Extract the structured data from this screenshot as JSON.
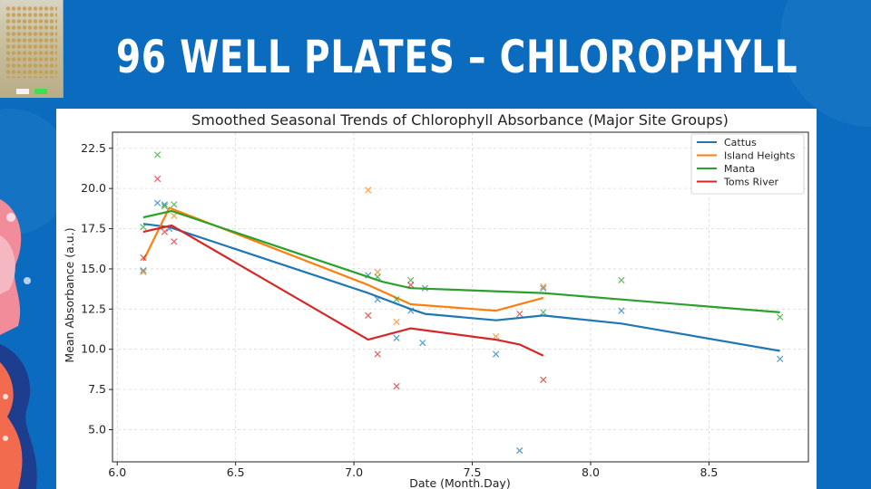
{
  "slide": {
    "title": "96 WELL PLATES – CHLOROPHYLL",
    "background_color": "#0b6bbf"
  },
  "chart_data": {
    "type": "line",
    "title": "Smoothed Seasonal Trends of Chlorophyll Absorbance (Major Site Groups)",
    "xlabel": "Date (Month.Day)",
    "ylabel": "Mean Absorbance (a.u.)",
    "xlim": [
      5.98,
      8.92
    ],
    "ylim": [
      3.0,
      23.5
    ],
    "xticks": [
      6.0,
      6.5,
      7.0,
      7.5,
      8.0,
      8.5
    ],
    "xtick_labels": [
      "6.0",
      "6.5",
      "7.0",
      "7.5",
      "8.0",
      "8.5"
    ],
    "yticks": [
      5.0,
      7.5,
      10.0,
      12.5,
      15.0,
      17.5,
      20.0,
      22.5
    ],
    "ytick_labels": [
      "5.0",
      "7.5",
      "10.0",
      "12.5",
      "15.0",
      "17.5",
      "20.0",
      "22.5"
    ],
    "grid": true,
    "legend_position": "top-right",
    "series": [
      {
        "name": "Cattus",
        "color": "#1f77b4",
        "line": [
          [
            6.11,
            17.8
          ],
          [
            6.22,
            17.6
          ],
          [
            7.06,
            13.5
          ],
          [
            7.24,
            12.5
          ],
          [
            7.3,
            12.2
          ],
          [
            7.6,
            11.8
          ],
          [
            7.8,
            12.1
          ],
          [
            8.13,
            11.6
          ],
          [
            8.8,
            9.9
          ]
        ],
        "points": [
          [
            6.11,
            14.9
          ],
          [
            6.17,
            19.1
          ],
          [
            6.2,
            19.0
          ],
          [
            6.22,
            17.5
          ],
          [
            7.06,
            14.6
          ],
          [
            7.1,
            13.1
          ],
          [
            7.18,
            10.7
          ],
          [
            7.24,
            12.4
          ],
          [
            7.29,
            10.4
          ],
          [
            7.3,
            13.8
          ],
          [
            7.6,
            9.7
          ],
          [
            7.7,
            3.7
          ],
          [
            7.8,
            13.8
          ],
          [
            8.13,
            12.4
          ],
          [
            8.8,
            9.4
          ]
        ]
      },
      {
        "name": "Island Heights",
        "color": "#ff7f0e",
        "line": [
          [
            6.11,
            15.5
          ],
          [
            6.22,
            18.8
          ],
          [
            7.06,
            14.0
          ],
          [
            7.24,
            12.8
          ],
          [
            7.6,
            12.4
          ],
          [
            7.8,
            13.2
          ]
        ],
        "points": [
          [
            6.11,
            14.8
          ],
          [
            6.24,
            18.3
          ],
          [
            7.06,
            19.9
          ],
          [
            7.1,
            14.8
          ],
          [
            7.18,
            11.7
          ],
          [
            7.6,
            10.8
          ],
          [
            7.8,
            13.9
          ]
        ]
      },
      {
        "name": "Manta",
        "color": "#2ca02c",
        "line": [
          [
            6.11,
            18.2
          ],
          [
            6.23,
            18.6
          ],
          [
            7.06,
            14.5
          ],
          [
            7.12,
            14.2
          ],
          [
            7.24,
            13.8
          ],
          [
            7.8,
            13.5
          ],
          [
            8.13,
            13.1
          ],
          [
            8.8,
            12.3
          ]
        ],
        "points": [
          [
            6.11,
            17.6
          ],
          [
            6.17,
            22.1
          ],
          [
            6.2,
            18.9
          ],
          [
            6.24,
            19.0
          ],
          [
            7.1,
            14.5
          ],
          [
            7.18,
            13.1
          ],
          [
            7.24,
            14.3
          ],
          [
            7.8,
            12.3
          ],
          [
            8.13,
            14.3
          ],
          [
            8.8,
            12.0
          ]
        ]
      },
      {
        "name": "Toms River",
        "color": "#d62728",
        "line": [
          [
            6.11,
            17.3
          ],
          [
            6.17,
            17.5
          ],
          [
            6.23,
            17.7
          ],
          [
            7.06,
            10.6
          ],
          [
            7.24,
            11.3
          ],
          [
            7.6,
            10.6
          ],
          [
            7.7,
            10.3
          ],
          [
            7.8,
            9.6
          ]
        ],
        "points": [
          [
            6.11,
            15.7
          ],
          [
            6.17,
            20.6
          ],
          [
            6.2,
            17.3
          ],
          [
            6.24,
            16.7
          ],
          [
            7.06,
            12.1
          ],
          [
            7.1,
            9.7
          ],
          [
            7.18,
            7.7
          ],
          [
            7.24,
            14.0
          ],
          [
            7.7,
            12.2
          ],
          [
            7.8,
            8.1
          ]
        ]
      }
    ]
  }
}
